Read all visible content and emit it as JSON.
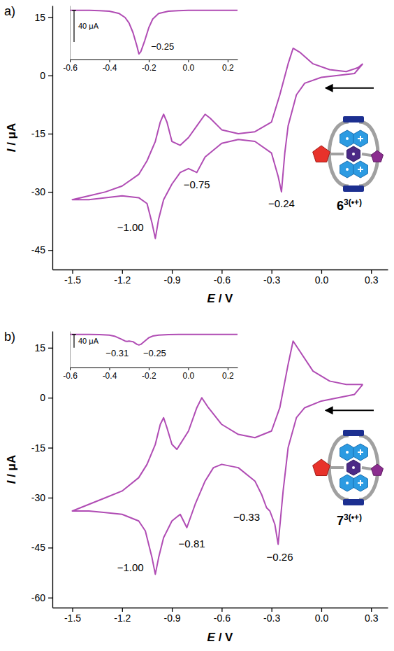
{
  "chart_data": [
    {
      "type": "line",
      "panel_label": "a)",
      "x_label": "E / V",
      "y_label": "I / μA",
      "xlim": [
        -1.62,
        0.4
      ],
      "xticks": [
        -1.5,
        -1.2,
        -0.9,
        -0.6,
        -0.3,
        {
          "value": 0,
          "label": "0.0"
        },
        0.3
      ],
      "ylim": [
        -50,
        18
      ],
      "yticks": [
        15,
        0,
        -15,
        -30,
        -45
      ],
      "x": [
        0.25,
        0.2,
        0.1,
        0,
        -0.1,
        -0.15,
        -0.2,
        -0.22,
        -0.24,
        -0.26,
        -0.3,
        -0.4,
        -0.5,
        -0.6,
        -0.7,
        -0.75,
        -0.8,
        -0.85,
        -0.9,
        -0.95,
        -0.98,
        -1,
        -1.02,
        -1.05,
        -1.1,
        -1.2,
        -1.3,
        -1.4,
        -1.5,
        -1.4,
        -1.3,
        -1.2,
        -1.1,
        -1.05,
        -1,
        -0.97,
        -0.95,
        -0.93,
        -0.9,
        -0.85,
        -0.8,
        -0.75,
        -0.7,
        -0.67,
        -0.6,
        -0.5,
        -0.4,
        -0.3,
        -0.25,
        -0.2,
        -0.17,
        -0.13,
        -0.05,
        0.05,
        0.15,
        0.22,
        0.25
      ],
      "series": [
        {
          "color": "#b04cb4",
          "values": [
            3,
            0.5,
            0,
            -0.5,
            -2,
            -5,
            -13,
            -20,
            -30,
            -26,
            -20,
            -17,
            -16.5,
            -17.5,
            -21,
            -25,
            -24,
            -25,
            -28,
            -32,
            -37,
            -42,
            -38,
            -33,
            -31.5,
            -31,
            -31.5,
            -32,
            -32,
            -31,
            -30,
            -28.5,
            -25.5,
            -22,
            -17,
            -12,
            -10,
            -12,
            -17,
            -18,
            -16,
            -13,
            -10,
            -11,
            -14,
            -15,
            -14.5,
            -12,
            -5,
            3,
            7,
            6,
            3,
            1.5,
            1,
            2,
            3
          ]
        }
      ],
      "annotations": [
        {
          "text": "−1.00",
          "x": -1.15,
          "y": -40
        },
        {
          "text": "−0.75",
          "x": -0.75,
          "y": -29
        },
        {
          "text": "−0.24",
          "x": -0.24,
          "y": -34
        }
      ],
      "compound_label": {
        "text": "6",
        "superscript": "3(•+)"
      }
    },
    {
      "type": "line",
      "tick_labels": "x",
      "xlim": [
        -0.6,
        0.25
      ],
      "xticks": [
        -0.6,
        -0.4,
        -0.2,
        {
          "value": 0,
          "label": "0.0"
        },
        0.2
      ],
      "ylim": [
        -62,
        6
      ],
      "x": [
        -0.6,
        -0.5,
        -0.45,
        -0.4,
        -0.35,
        -0.32,
        -0.3,
        -0.28,
        -0.26,
        -0.25,
        -0.24,
        -0.22,
        -0.2,
        -0.18,
        -0.15,
        -0.1,
        -0.05,
        0,
        0.1,
        0.2,
        0.25
      ],
      "series": [
        {
          "color": "#b04cb4",
          "values": [
            0,
            0,
            -0.3,
            -1,
            -4,
            -9,
            -16,
            -28,
            -45,
            -55,
            -52,
            -38,
            -22,
            -11,
            -4,
            -1,
            -0.3,
            0,
            0,
            0,
            0
          ]
        }
      ],
      "scale_bar": {
        "value": 40,
        "label": "40 μA"
      },
      "annotations": [
        {
          "text": "−0.25",
          "x": -0.13,
          "y": -50
        }
      ]
    },
    {
      "type": "line",
      "panel_label": "b)",
      "x_label": "E / V",
      "y_label": "I / μA",
      "xlim": [
        -1.62,
        0.4
      ],
      "xticks": [
        -1.5,
        -1.2,
        -0.9,
        -0.6,
        -0.3,
        {
          "value": 0,
          "label": "0.0"
        },
        0.3
      ],
      "ylim": [
        -63,
        20
      ],
      "yticks": [
        15,
        0,
        -15,
        -30,
        -45,
        -60
      ],
      "x": [
        0.25,
        0.2,
        0.1,
        0,
        -0.1,
        -0.15,
        -0.2,
        -0.23,
        -0.26,
        -0.28,
        -0.31,
        -0.33,
        -0.36,
        -0.4,
        -0.5,
        -0.6,
        -0.65,
        -0.7,
        -0.76,
        -0.81,
        -0.85,
        -0.9,
        -0.95,
        -0.98,
        -1,
        -1.02,
        -1.06,
        -1.1,
        -1.2,
        -1.3,
        -1.4,
        -1.5,
        -1.4,
        -1.3,
        -1.2,
        -1.1,
        -1.05,
        -1,
        -0.97,
        -0.95,
        -0.93,
        -0.9,
        -0.87,
        -0.8,
        -0.75,
        -0.72,
        -0.68,
        -0.6,
        -0.5,
        -0.4,
        -0.3,
        -0.25,
        -0.2,
        -0.17,
        -0.13,
        -0.05,
        0.05,
        0.15,
        0.22,
        0.25
      ],
      "series": [
        {
          "color": "#b04cb4",
          "values": [
            4,
            1,
            0,
            -1,
            -3,
            -6,
            -15,
            -28,
            -44,
            -38,
            -34,
            -33,
            -29,
            -25,
            -21,
            -20,
            -21,
            -25,
            -32,
            -39,
            -35,
            -37,
            -42,
            -48,
            -53,
            -48,
            -40,
            -37,
            -35,
            -34.5,
            -34,
            -34,
            -32,
            -30,
            -28,
            -24,
            -20,
            -14,
            -8,
            -6,
            -9,
            -14,
            -15.5,
            -10,
            -3,
            0,
            -3,
            -8,
            -11,
            -12,
            -10,
            -3,
            10,
            17,
            14,
            8,
            5,
            4,
            4,
            4
          ]
        }
      ],
      "annotations": [
        {
          "text": "−1.00",
          "x": -1.15,
          "y": -52
        },
        {
          "text": "−0.81",
          "x": -0.78,
          "y": -45
        },
        {
          "text": "−0.33",
          "x": -0.45,
          "y": -37
        },
        {
          "text": "−0.26",
          "x": -0.25,
          "y": -49
        }
      ],
      "compound_label": {
        "text": "7",
        "superscript": "3(•+)"
      }
    },
    {
      "type": "line",
      "tick_labels": "x",
      "xlim": [
        -0.6,
        0.25
      ],
      "xticks": [
        -0.6,
        -0.4,
        -0.2,
        {
          "value": 0,
          "label": "0.0"
        },
        0.2
      ],
      "ylim": [
        -100,
        10
      ],
      "x": [
        -0.6,
        -0.5,
        -0.45,
        -0.4,
        -0.37,
        -0.34,
        -0.32,
        -0.31,
        -0.3,
        -0.28,
        -0.26,
        -0.25,
        -0.24,
        -0.22,
        -0.2,
        -0.18,
        -0.15,
        -0.1,
        0,
        0.1,
        0.2,
        0.25
      ],
      "series": [
        {
          "color": "#b04cb4",
          "values": [
            0,
            0,
            -0.5,
            -2,
            -6,
            -14,
            -20,
            -21,
            -20,
            -22,
            -30,
            -32,
            -30,
            -20,
            -10,
            -5,
            -2,
            -0.5,
            0,
            0,
            0,
            0
          ]
        }
      ],
      "scale_bar": {
        "value": 40,
        "label": "40 μA"
      },
      "annotations": [
        {
          "text": "−0.31",
          "x": -0.36,
          "y": -66
        },
        {
          "text": "−0.25",
          "x": -0.17,
          "y": -66
        }
      ]
    }
  ]
}
